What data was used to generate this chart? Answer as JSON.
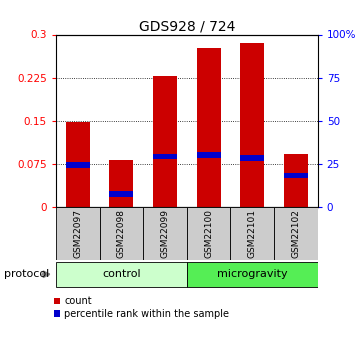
{
  "title": "GDS928 / 724",
  "samples": [
    "GSM22097",
    "GSM22098",
    "GSM22099",
    "GSM22100",
    "GSM22101",
    "GSM22102"
  ],
  "bar_heights": [
    0.148,
    0.082,
    0.228,
    0.276,
    0.285,
    0.092
  ],
  "percentile_values": [
    0.073,
    0.022,
    0.088,
    0.09,
    0.085,
    0.055
  ],
  "bar_color": "#cc0000",
  "percentile_color": "#0000cc",
  "ylim_left": [
    0,
    0.3
  ],
  "yticks_left": [
    0,
    0.075,
    0.15,
    0.225,
    0.3
  ],
  "ytick_labels_left": [
    "0",
    "0.075",
    "0.15",
    "0.225",
    "0.3"
  ],
  "yticks_right": [
    0,
    25,
    50,
    75,
    100
  ],
  "ytick_labels_right": [
    "0",
    "25",
    "50",
    "75",
    "100%"
  ],
  "groups": [
    {
      "label": "control",
      "indices": [
        0,
        1,
        2
      ],
      "color": "#ccffcc"
    },
    {
      "label": "microgravity",
      "indices": [
        3,
        4,
        5
      ],
      "color": "#55ee55"
    }
  ],
  "protocol_label": "protocol",
  "legend_count_label": "count",
  "legend_percentile_label": "percentile rank within the sample",
  "bar_width": 0.55,
  "sample_label_bg": "#cccccc",
  "title_fontsize": 10,
  "tick_fontsize": 7.5,
  "sample_fontsize": 6.5,
  "group_fontsize": 8,
  "legend_fontsize": 7
}
